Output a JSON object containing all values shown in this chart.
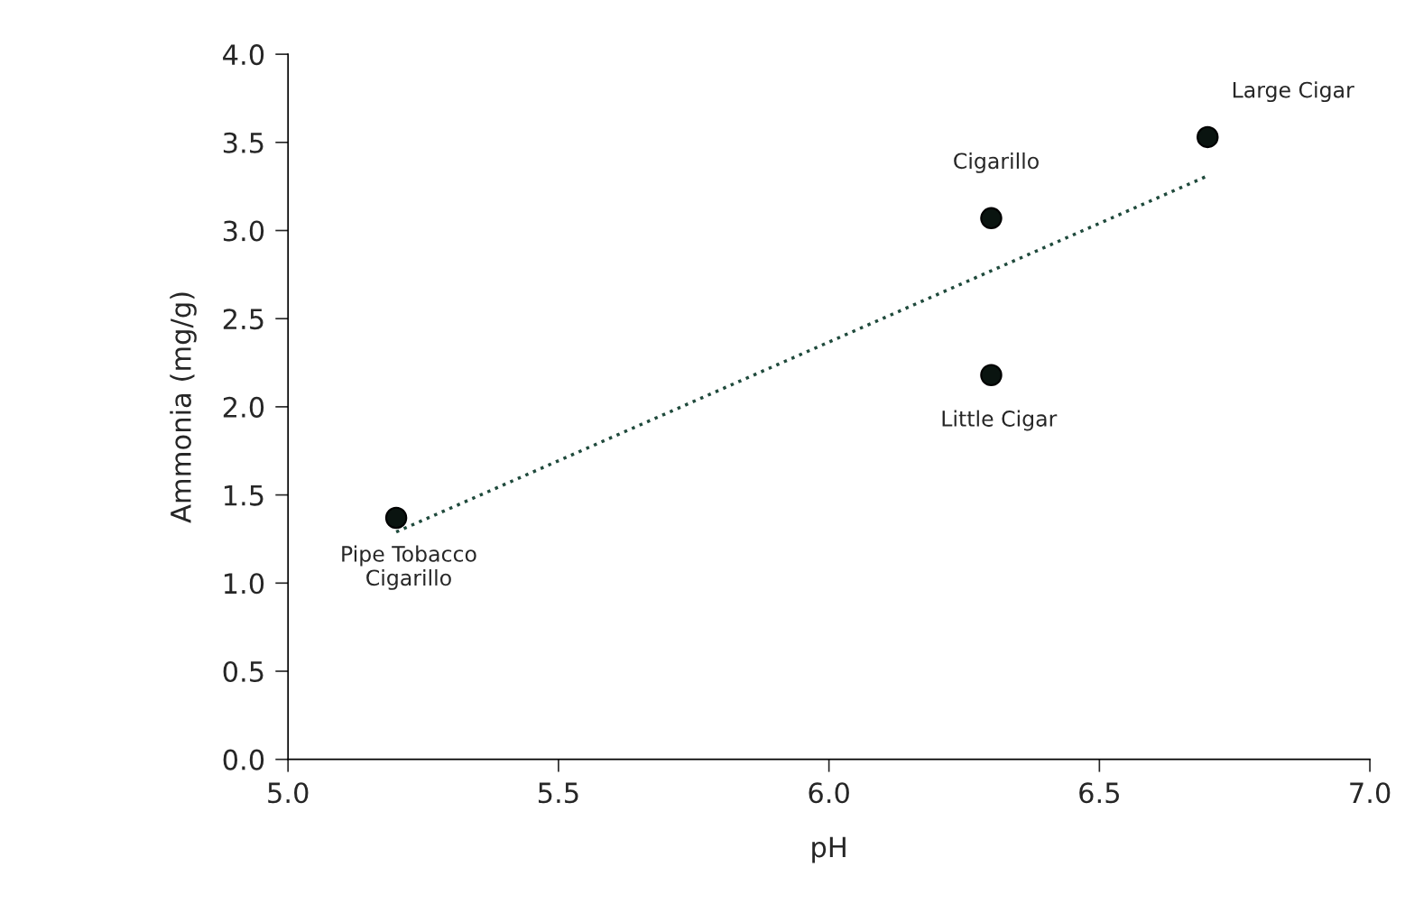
{
  "chart_data": {
    "type": "scatter",
    "xlabel": "pH",
    "ylabel": "Ammonia (mg/g)",
    "xlim": [
      5.0,
      7.0
    ],
    "xticks": [
      {
        "value": 5.0,
        "label": "5.0"
      },
      {
        "value": 5.5,
        "label": "5.5"
      },
      {
        "value": 6.0,
        "label": "6.0"
      },
      {
        "value": 6.5,
        "label": "6.5"
      },
      {
        "value": 7.0,
        "label": "7.0"
      }
    ],
    "ylim": [
      0.0,
      4.0
    ],
    "yticks": [
      {
        "value": 0.0,
        "label": "0.0"
      },
      {
        "value": 0.5,
        "label": "0.5"
      },
      {
        "value": 1.0,
        "label": "1.0"
      },
      {
        "value": 1.5,
        "label": "1.5"
      },
      {
        "value": 2.0,
        "label": "2.0"
      },
      {
        "value": 2.5,
        "label": "2.5"
      },
      {
        "value": 3.0,
        "label": "3.0"
      },
      {
        "value": 3.5,
        "label": "3.5"
      },
      {
        "value": 4.0,
        "label": "4.0"
      }
    ],
    "grid": false,
    "series": [
      {
        "color": "#0a1410",
        "marker": "circle",
        "x": [
          5.2,
          6.3,
          6.3,
          6.7
        ],
        "values": [
          1.37,
          3.07,
          2.18,
          3.53
        ]
      },
      {
        "type": "line",
        "color": "#1f4a3c",
        "line_style": "dotted",
        "marker": "none",
        "x": [
          5.2,
          6.7
        ],
        "values": [
          1.29,
          3.31
        ]
      }
    ],
    "annotations": [
      {
        "text": "Pipe Tobacco\nCigarillo",
        "x": 5.2,
        "y": 1.37
      },
      {
        "text": "Cigarillo",
        "x": 6.3,
        "y": 3.07
      },
      {
        "text": "Little Cigar",
        "x": 6.3,
        "y": 2.18
      },
      {
        "text": "Large Cigar",
        "x": 6.7,
        "y": 3.53
      }
    ]
  }
}
